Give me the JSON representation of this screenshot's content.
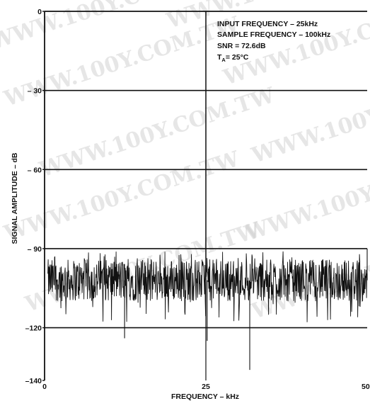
{
  "chart_data": {
    "type": "line",
    "xlabel": "FREQUENCY – kHz",
    "ylabel": "SIGNAL AMPLITUDE – dB",
    "xlim": [
      0,
      50
    ],
    "ylim": [
      -140,
      0
    ],
    "x_ticks": [
      {
        "value": 0,
        "label": "0"
      },
      {
        "value": 25,
        "label": "25"
      },
      {
        "value": 50,
        "label": "50"
      }
    ],
    "y_ticks": [
      {
        "value": 0,
        "label": "0"
      },
      {
        "value": -30,
        "label": "– 30"
      },
      {
        "value": -60,
        "label": "– 60"
      },
      {
        "value": -90,
        "label": "– 90"
      },
      {
        "value": -120,
        "label": "–120"
      },
      {
        "value": -140,
        "label": "–140"
      }
    ],
    "grid_y": [
      -30,
      -60,
      -90,
      -120
    ],
    "grid_x": [
      25
    ],
    "annotations": [
      "INPUT FREQUENCY – 25kHz",
      "SAMPLE FREQUENCY – 100kHz",
      "SNR = 72.6dB",
      "= 25°C"
    ],
    "annotation_temp_symbol": "T",
    "annotation_temp_subscript": "A",
    "noise_floor": {
      "median": -102,
      "upper": -94,
      "lower": -110,
      "x_range": [
        0.5,
        50
      ]
    },
    "series": [
      {
        "x": [
          25
        ],
        "values": [
          0
        ],
        "style": "spike"
      },
      {
        "x": [
          25.2,
          31.8,
          12.4,
          50
        ],
        "values": [
          -125,
          -136,
          -124,
          -90
        ],
        "style": "spur"
      }
    ]
  },
  "watermark": "WWW.100Y.COM.TW"
}
